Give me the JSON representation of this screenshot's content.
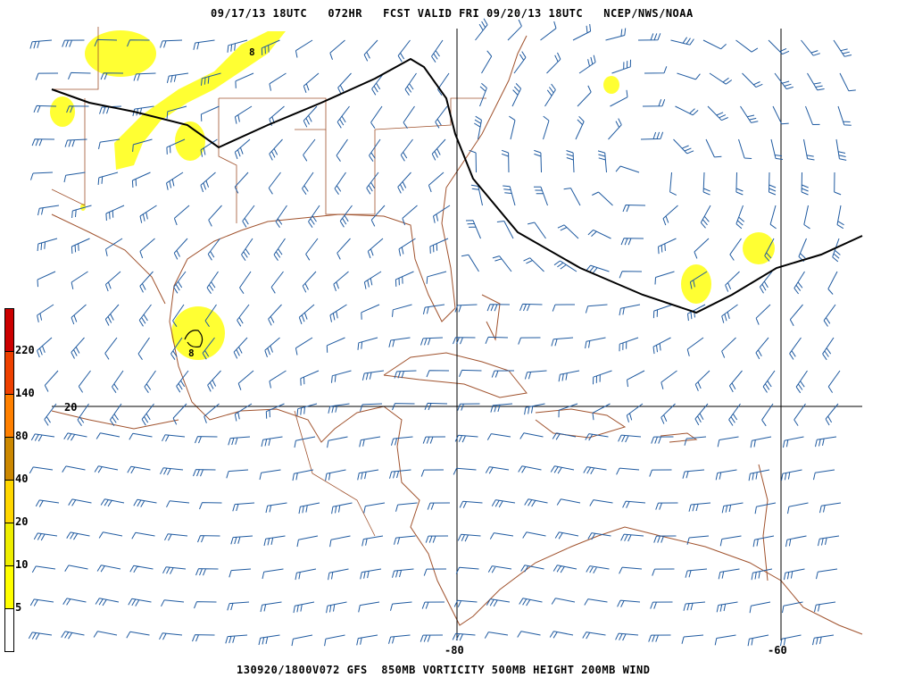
{
  "header": {
    "title": "09/17/13 18UTC   072HR   FCST VALID FRI 09/20/13 18UTC   NCEP/NWS/NOAA"
  },
  "footer": {
    "caption": "130920/1800V072 GFS  850MB VORTICITY 500MB HEIGHT 200MB WIND"
  },
  "grid_labels": {
    "lat_20": "20",
    "lon_80": "-80",
    "lon_60": "-60"
  },
  "contour_labels": [
    "8",
    "8"
  ],
  "colorbar": {
    "labels": [
      "220",
      "140",
      "80",
      "40",
      "20",
      "10",
      "5"
    ],
    "colors": [
      "#cc0000",
      "#ee4000",
      "#ff8000",
      "#cc8800",
      "#ffd700",
      "#eeee00",
      "#ffff00",
      "#ffffff"
    ]
  },
  "colors": {
    "coastline": "#a0522d",
    "wind_barb": "#1f5aa0",
    "height_contour": "#000000",
    "vorticity_fill": "#ffff33"
  }
}
